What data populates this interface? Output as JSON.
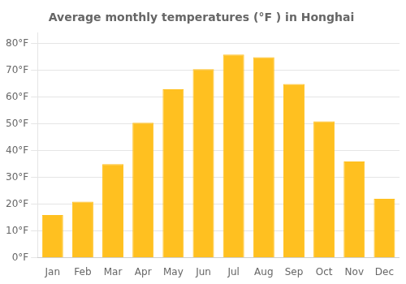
{
  "chart_data": {
    "type": "bar",
    "title": "Average monthly temperatures (°F ) in Honghai",
    "categories": [
      "Jan",
      "Feb",
      "Mar",
      "Apr",
      "May",
      "Jun",
      "Jul",
      "Aug",
      "Sep",
      "Oct",
      "Nov",
      "Dec"
    ],
    "values": [
      16,
      21,
      35,
      50.5,
      63,
      70.5,
      76,
      75,
      65,
      51,
      36,
      22
    ],
    "color": "#FFC020",
    "ylim": [
      0,
      84
    ],
    "yticks": [
      {
        "value": 0,
        "label": "0°F"
      },
      {
        "value": 10,
        "label": "10°F"
      },
      {
        "value": 20,
        "label": "20°F"
      },
      {
        "value": 30,
        "label": "30°F"
      },
      {
        "value": 40,
        "label": "40°F"
      },
      {
        "value": 50,
        "label": "50°F"
      },
      {
        "value": 60,
        "label": "60°F"
      },
      {
        "value": 70,
        "label": "70°F"
      },
      {
        "value": 80,
        "label": "80°F"
      }
    ],
    "grid": true
  }
}
